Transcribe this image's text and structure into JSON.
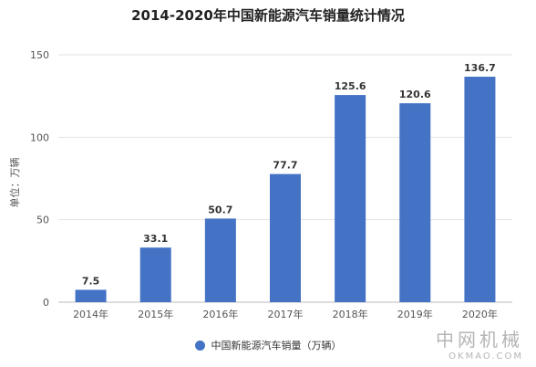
{
  "chart_data": {
    "type": "bar",
    "title": "2014-2020年中国新能源汽车销量统计情况",
    "ylabel": "单位：万辆",
    "xlabel": "",
    "categories": [
      "2014年",
      "2015年",
      "2016年",
      "2017年",
      "2018年",
      "2019年",
      "2020年"
    ],
    "series": [
      {
        "name": "中国新能源汽车销量（万辆）",
        "values": [
          7.5,
          33.1,
          50.7,
          77.7,
          125.6,
          120.6,
          136.7
        ],
        "labels": [
          "7.5",
          "33.1",
          "50.7",
          "77.7",
          "125.6",
          "120.6",
          "136.7"
        ],
        "color": "#4472c4"
      }
    ],
    "ylim": [
      0,
      150
    ],
    "yticks": [
      "0",
      "50",
      "100",
      "150"
    ],
    "grid": true,
    "legend_position": "bottom"
  },
  "watermark": {
    "cn": "中网机械",
    "en": "OKMAO.COM"
  }
}
